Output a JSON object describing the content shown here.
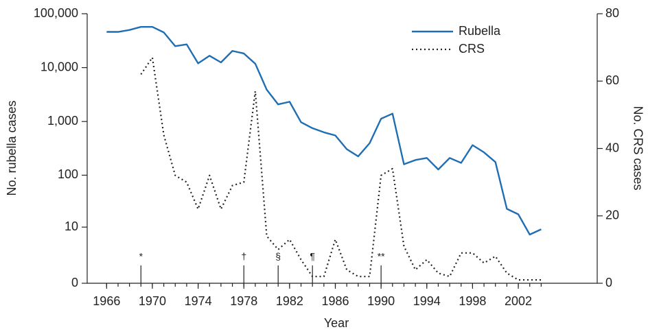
{
  "chart_data": {
    "type": "line",
    "xlabel": "Year",
    "ylabel": "No. rubella cases",
    "y2label": "No. CRS cases",
    "xlim": [
      1964.3,
      2008.9
    ],
    "xticks": [
      1966,
      1970,
      1974,
      1978,
      1982,
      1986,
      1990,
      1994,
      1998,
      2002
    ],
    "xminor_ticks": [
      1966,
      1967,
      1968,
      1969,
      1970,
      1971,
      1972,
      1973,
      1974,
      1975,
      1976,
      1977,
      1978,
      1979,
      1980,
      1981,
      1982,
      1983,
      1984,
      1985,
      1986,
      1987,
      1988,
      1989,
      1990,
      1991,
      1992,
      1993,
      1994,
      1995,
      1996,
      1997,
      1998,
      1999,
      2000,
      2001,
      2002,
      2003,
      2004
    ],
    "yscale": "symlog",
    "ylim": [
      0,
      100000
    ],
    "yticks": [
      0,
      10,
      100,
      {
        "value": 1000,
        "label": "1,000"
      },
      {
        "value": 10000,
        "label": "10,000"
      },
      {
        "value": 100000,
        "label": "100,000"
      }
    ],
    "y2lim": [
      0,
      80
    ],
    "y2ticks": [
      0,
      20,
      40,
      60,
      80
    ],
    "legend": "upper right",
    "series": [
      {
        "name": "Rubella",
        "color": "#1f6db3",
        "style": "solid",
        "x": [
          1966,
          1967,
          1968,
          1969,
          1970,
          1971,
          1972,
          1973,
          1974,
          1975,
          1976,
          1977,
          1978,
          1979,
          1980,
          1981,
          1982,
          1983,
          1984,
          1985,
          1986,
          1987,
          1988,
          1989,
          1990,
          1991,
          1992,
          1993,
          1994,
          1995,
          1996,
          1997,
          1998,
          1999,
          2000,
          2001,
          2002,
          2003,
          2004
        ],
        "values": [
          46000,
          46000,
          50000,
          57000,
          57000,
          45000,
          25000,
          27000,
          12000,
          16600,
          12500,
          20400,
          18300,
          11800,
          3900,
          2077,
          2325,
          970,
          752,
          630,
          551,
          306,
          225,
          396,
          1125,
          1401,
          160,
          192,
          210,
          128,
          210,
          170,
          364,
          267,
          176,
          23,
          18,
          7,
          9
        ]
      },
      {
        "name": "CRS",
        "color": "#222222",
        "style": "dotted",
        "axis": "y2",
        "x": [
          1969,
          1970,
          1971,
          1972,
          1973,
          1974,
          1975,
          1976,
          1977,
          1978,
          1979,
          1980,
          1981,
          1982,
          1983,
          1984,
          1985,
          1986,
          1987,
          1988,
          1989,
          1990,
          1991,
          1992,
          1993,
          1994,
          1995,
          1996,
          1997,
          1998,
          1999,
          2000,
          2001,
          2002,
          2003,
          2004
        ],
        "values": [
          62,
          67,
          44,
          32,
          30,
          22,
          32,
          22,
          29,
          30,
          57,
          14,
          10,
          13,
          7,
          2,
          2,
          13,
          4,
          2,
          2,
          32,
          34,
          11,
          4,
          7,
          3,
          2,
          9,
          9,
          6,
          8,
          3,
          1,
          1,
          1
        ]
      }
    ],
    "annotations": [
      {
        "x": 1969,
        "label": "*"
      },
      {
        "x": 1978,
        "label": "†"
      },
      {
        "x": 1981,
        "label": "§"
      },
      {
        "x": 1984,
        "label": "¶"
      },
      {
        "x": 1990,
        "label": "**"
      }
    ]
  }
}
